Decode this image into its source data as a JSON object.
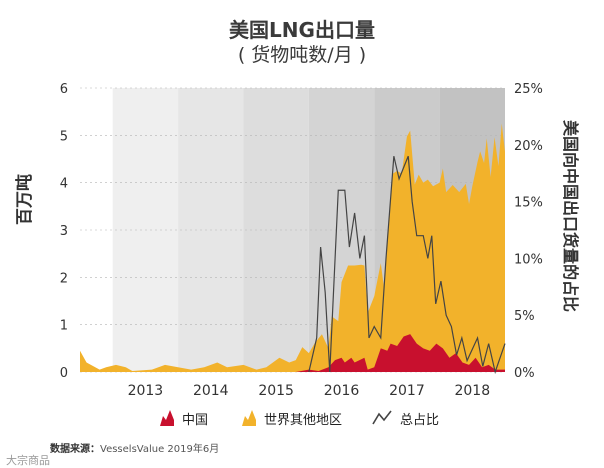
{
  "header": {
    "title": "美国LNG出口量",
    "subtitle": "( 货物吨数/月 )"
  },
  "source": {
    "label": "数据来源：",
    "text": "VesselsValue 2019年6月"
  },
  "watermark": "大宗商品",
  "chart_data": {
    "type": "area",
    "title": "美国LNG出口量",
    "subtitle": "( 货物吨数/月 )",
    "ylabel_left": "百万吨",
    "ylabel_right": "美国向中国出口货量的占比",
    "x_categories": [
      "2013",
      "2014",
      "2015",
      "2016",
      "2017",
      "2018"
    ],
    "ylim_left": [
      0,
      6
    ],
    "yticks_left": [
      "0",
      "1",
      "2",
      "3",
      "4",
      "5",
      "6"
    ],
    "ylim_right": [
      0,
      25
    ],
    "yticks_right": [
      "0%",
      "5%",
      "10%",
      "15%",
      "20%",
      "25%"
    ],
    "grid": true,
    "legend_position": "bottom",
    "x_start": 2012.5,
    "x_end": 2019.0,
    "colors": {
      "china": "#c8102e",
      "rest_of_world": "#f2b22b",
      "share_line": "#444444"
    },
    "series": [
      {
        "name": "中国",
        "kind": "area",
        "unit": "百万吨",
        "points": [
          [
            2012.5,
            0
          ],
          [
            2015.8,
            0
          ],
          [
            2016.0,
            0.05
          ],
          [
            2016.15,
            0.02
          ],
          [
            2016.3,
            0.1
          ],
          [
            2016.4,
            0.25
          ],
          [
            2016.5,
            0.3
          ],
          [
            2016.55,
            0.2
          ],
          [
            2016.65,
            0.3
          ],
          [
            2016.7,
            0.2
          ],
          [
            2016.85,
            0.3
          ],
          [
            2016.9,
            0.05
          ],
          [
            2017.0,
            0.1
          ],
          [
            2017.1,
            0.5
          ],
          [
            2017.2,
            0.45
          ],
          [
            2017.25,
            0.6
          ],
          [
            2017.35,
            0.55
          ],
          [
            2017.45,
            0.75
          ],
          [
            2017.55,
            0.8
          ],
          [
            2017.65,
            0.6
          ],
          [
            2017.75,
            0.5
          ],
          [
            2017.85,
            0.45
          ],
          [
            2017.95,
            0.6
          ],
          [
            2018.05,
            0.5
          ],
          [
            2018.15,
            0.3
          ],
          [
            2018.25,
            0.4
          ],
          [
            2018.35,
            0.2
          ],
          [
            2018.45,
            0.15
          ],
          [
            2018.55,
            0.3
          ],
          [
            2018.65,
            0.1
          ],
          [
            2018.75,
            0.15
          ],
          [
            2018.85,
            0.05
          ],
          [
            2019.0,
            0.05
          ]
        ]
      },
      {
        "name": "世界其他地区",
        "kind": "area",
        "unit": "百万吨",
        "points": [
          [
            2012.5,
            0.45
          ],
          [
            2012.6,
            0.2
          ],
          [
            2012.8,
            0.05
          ],
          [
            2012.9,
            0.1
          ],
          [
            2013.05,
            0.15
          ],
          [
            2013.2,
            0.1
          ],
          [
            2013.3,
            0.02
          ],
          [
            2013.6,
            0.05
          ],
          [
            2013.8,
            0.15
          ],
          [
            2014.0,
            0.1
          ],
          [
            2014.2,
            0.05
          ],
          [
            2014.4,
            0.1
          ],
          [
            2014.6,
            0.2
          ],
          [
            2014.75,
            0.1
          ],
          [
            2015.0,
            0.15
          ],
          [
            2015.2,
            0.05
          ],
          [
            2015.35,
            0.1
          ],
          [
            2015.55,
            0.3
          ],
          [
            2015.7,
            0.2
          ],
          [
            2015.8,
            0.25
          ],
          [
            2015.9,
            0.5
          ],
          [
            2016.0,
            0.35
          ],
          [
            2016.1,
            0.6
          ],
          [
            2016.2,
            0.75
          ],
          [
            2016.3,
            0.4
          ],
          [
            2016.35,
            1.0
          ],
          [
            2016.45,
            0.8
          ],
          [
            2016.5,
            1.6
          ],
          [
            2016.6,
            2.0
          ],
          [
            2016.7,
            2.05
          ],
          [
            2016.8,
            2.0
          ],
          [
            2016.85,
            1.95
          ],
          [
            2016.9,
            1.2
          ],
          [
            2017.0,
            1.5
          ],
          [
            2017.1,
            1.8
          ],
          [
            2017.15,
            1.3
          ],
          [
            2017.2,
            2.4
          ],
          [
            2017.28,
            3.6
          ],
          [
            2017.35,
            3.7
          ],
          [
            2017.42,
            3.5
          ],
          [
            2017.5,
            4.2
          ],
          [
            2017.55,
            4.3
          ],
          [
            2017.62,
            3.3
          ],
          [
            2017.68,
            3.6
          ],
          [
            2017.75,
            3.5
          ],
          [
            2017.82,
            3.6
          ],
          [
            2017.9,
            3.4
          ],
          [
            2018.0,
            3.45
          ],
          [
            2018.05,
            3.8
          ],
          [
            2018.1,
            3.4
          ],
          [
            2018.2,
            3.6
          ],
          [
            2018.3,
            3.5
          ],
          [
            2018.4,
            3.8
          ],
          [
            2018.45,
            3.4
          ],
          [
            2018.5,
            3.7
          ],
          [
            2018.58,
            4.2
          ],
          [
            2018.62,
            4.5
          ],
          [
            2018.68,
            4.3
          ],
          [
            2018.72,
            4.8
          ],
          [
            2018.78,
            4.0
          ],
          [
            2018.84,
            4.9
          ],
          [
            2018.9,
            4.3
          ],
          [
            2018.95,
            5.2
          ],
          [
            2019.0,
            4.6
          ]
        ]
      },
      {
        "name": "总占比",
        "kind": "line",
        "unit": "%",
        "points": [
          [
            2016.0,
            0
          ],
          [
            2016.12,
            3
          ],
          [
            2016.18,
            11
          ],
          [
            2016.25,
            7
          ],
          [
            2016.32,
            0
          ],
          [
            2016.45,
            16
          ],
          [
            2016.55,
            16
          ],
          [
            2016.62,
            11
          ],
          [
            2016.7,
            14
          ],
          [
            2016.78,
            10
          ],
          [
            2016.85,
            12
          ],
          [
            2016.92,
            3
          ],
          [
            2017.0,
            4
          ],
          [
            2017.1,
            3
          ],
          [
            2017.18,
            10
          ],
          [
            2017.3,
            19
          ],
          [
            2017.38,
            17
          ],
          [
            2017.45,
            18
          ],
          [
            2017.52,
            19
          ],
          [
            2017.58,
            15
          ],
          [
            2017.65,
            12
          ],
          [
            2017.75,
            12
          ],
          [
            2017.82,
            10
          ],
          [
            2017.88,
            12
          ],
          [
            2017.94,
            6
          ],
          [
            2018.02,
            8
          ],
          [
            2018.1,
            5
          ],
          [
            2018.18,
            4
          ],
          [
            2018.26,
            1.5
          ],
          [
            2018.34,
            3
          ],
          [
            2018.42,
            1
          ],
          [
            2018.5,
            2
          ],
          [
            2018.58,
            3
          ],
          [
            2018.66,
            0.5
          ],
          [
            2018.75,
            2.5
          ],
          [
            2018.85,
            0
          ],
          [
            2019.0,
            2.5
          ]
        ]
      }
    ],
    "legend": [
      "中国",
      "世界其他地区",
      "总占比"
    ]
  }
}
